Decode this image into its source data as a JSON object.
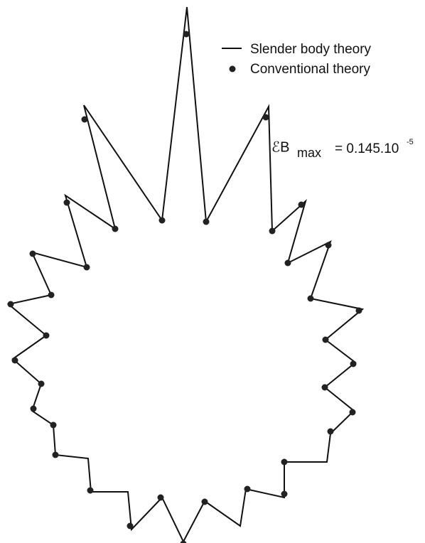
{
  "legend": {
    "items": [
      {
        "label": "Slender body theory"
      },
      {
        "label": "Conventional theory"
      }
    ]
  },
  "annotation": {
    "symbol": "ℰB",
    "subscript": "max",
    "equals": "= 0.145.10",
    "superscript": "-5"
  }
}
